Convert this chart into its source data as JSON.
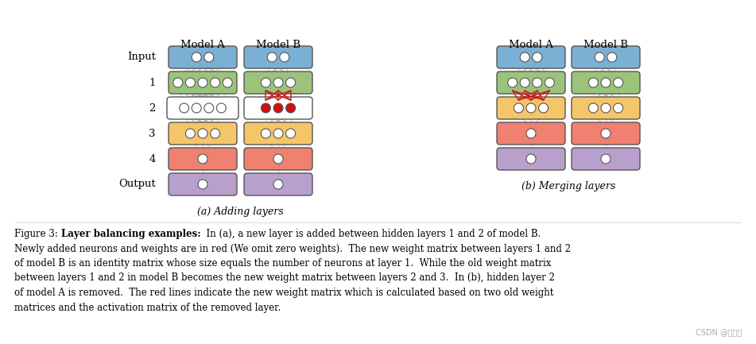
{
  "bg_color": "#ffffff",
  "fig_width": 9.51,
  "fig_height": 4.33,
  "colors": {
    "blue": "#7BAFD4",
    "green": "#9BC47A",
    "orange": "#F5C56A",
    "red_layer": "#F08070",
    "purple": "#B89FCC",
    "white": "#ffffff",
    "red_neuron": "#CC1111",
    "red_line": "#CC1111",
    "gray_line": "#999999",
    "border": "#555555"
  },
  "caption_a": "(a) Adding layers",
  "caption_b": "(b) Merging layers",
  "watermark": "CSDN @编程龙",
  "fig_caption_parts": [
    {
      "text": "Figure 3: ",
      "bold": false
    },
    {
      "text": "Layer balancing examples:",
      "bold": true
    },
    {
      "text": "  In (a), a new layer is added between hidden layers 1 and 2 of model B.",
      "bold": false
    }
  ],
  "fig_caption_lines": [
    "Figure 3:  **Layer balancing examples:**  In (a), a new layer is added between hidden layers 1 and 2 of model B.",
    "Newly added neurons and weights are in red (We omit zero weights).  The new weight matrix between layers 1 and 2",
    "of model B is an identity matrix whose size equals the number of neurons at layer 1.  While the old weight matrix",
    "between layers 1 and 2 in model B becomes the new weight matrix between layers 2 and 3.  In (b), hidden layer 2",
    "of model A is removed.  The red lines indicate the new weight matrix which is calculated based on two old weight",
    "matrices and the activation matrix of the removed layer."
  ]
}
